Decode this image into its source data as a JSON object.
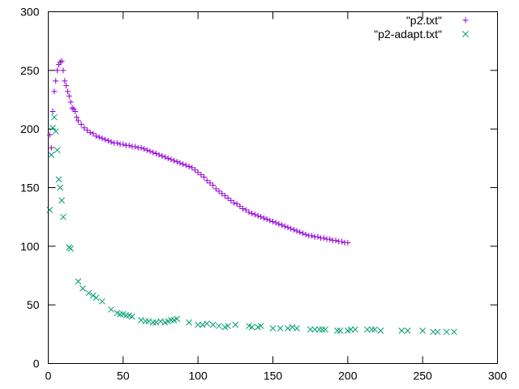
{
  "chart_data": {
    "type": "scatter",
    "title": "",
    "xlabel": "",
    "ylabel": "",
    "xlim": [
      0,
      300
    ],
    "ylim": [
      0,
      300
    ],
    "xticks": [
      0,
      50,
      100,
      150,
      200,
      250,
      300
    ],
    "yticks": [
      0,
      50,
      100,
      150,
      200,
      250,
      300
    ],
    "grid": false,
    "legend_position": "top-right",
    "series": [
      {
        "name": "\"p2.txt\"",
        "marker": "plus",
        "color": "#9400d3",
        "points": [
          [
            1,
            195
          ],
          [
            2,
            184
          ],
          [
            3,
            215
          ],
          [
            4,
            232
          ],
          [
            5,
            241
          ],
          [
            6,
            250
          ],
          [
            7,
            255
          ],
          [
            8,
            257
          ],
          [
            9,
            258
          ],
          [
            10,
            250
          ],
          [
            11,
            241
          ],
          [
            12,
            237
          ],
          [
            13,
            232
          ],
          [
            14,
            228
          ],
          [
            15,
            223
          ],
          [
            16,
            218
          ],
          [
            17,
            217
          ],
          [
            18,
            215
          ],
          [
            19,
            210
          ],
          [
            20,
            207
          ],
          [
            22,
            204
          ],
          [
            24,
            201
          ],
          [
            26,
            199
          ],
          [
            28,
            197
          ],
          [
            30,
            196
          ],
          [
            32,
            194
          ],
          [
            34,
            193
          ],
          [
            36,
            192
          ],
          [
            38,
            191
          ],
          [
            40,
            190
          ],
          [
            42,
            189
          ],
          [
            44,
            188
          ],
          [
            46,
            188
          ],
          [
            48,
            187
          ],
          [
            50,
            187
          ],
          [
            52,
            186
          ],
          [
            54,
            186
          ],
          [
            56,
            185
          ],
          [
            58,
            185
          ],
          [
            60,
            184
          ],
          [
            62,
            184
          ],
          [
            64,
            183
          ],
          [
            66,
            182
          ],
          [
            68,
            181
          ],
          [
            70,
            180
          ],
          [
            72,
            179
          ],
          [
            74,
            178
          ],
          [
            76,
            177
          ],
          [
            78,
            176
          ],
          [
            80,
            175
          ],
          [
            82,
            174
          ],
          [
            84,
            173
          ],
          [
            86,
            172
          ],
          [
            88,
            171
          ],
          [
            90,
            170
          ],
          [
            92,
            169
          ],
          [
            94,
            168
          ],
          [
            96,
            167
          ],
          [
            98,
            165
          ],
          [
            100,
            163
          ],
          [
            102,
            161
          ],
          [
            104,
            159
          ],
          [
            106,
            156
          ],
          [
            108,
            154
          ],
          [
            110,
            152
          ],
          [
            112,
            149
          ],
          [
            114,
            147
          ],
          [
            116,
            145
          ],
          [
            118,
            143
          ],
          [
            120,
            141
          ],
          [
            122,
            139
          ],
          [
            124,
            137
          ],
          [
            126,
            136
          ],
          [
            128,
            134
          ],
          [
            130,
            132
          ],
          [
            132,
            131
          ],
          [
            134,
            129
          ],
          [
            136,
            128
          ],
          [
            138,
            127
          ],
          [
            140,
            126
          ],
          [
            142,
            125
          ],
          [
            144,
            124
          ],
          [
            146,
            123
          ],
          [
            148,
            122
          ],
          [
            150,
            121
          ],
          [
            152,
            120
          ],
          [
            154,
            119
          ],
          [
            156,
            118
          ],
          [
            158,
            117
          ],
          [
            160,
            116
          ],
          [
            162,
            115
          ],
          [
            164,
            114
          ],
          [
            166,
            113
          ],
          [
            168,
            112
          ],
          [
            170,
            111
          ],
          [
            172,
            110
          ],
          [
            174,
            109
          ],
          [
            176,
            109
          ],
          [
            178,
            108
          ],
          [
            180,
            108
          ],
          [
            182,
            107
          ],
          [
            184,
            107
          ],
          [
            186,
            106
          ],
          [
            188,
            106
          ],
          [
            190,
            105
          ],
          [
            192,
            105
          ],
          [
            194,
            104
          ],
          [
            196,
            104
          ],
          [
            198,
            103
          ],
          [
            200,
            103
          ]
        ]
      },
      {
        "name": "\"p2-adapt.txt\"",
        "marker": "cross",
        "color": "#009e73",
        "points": [
          [
            1,
            131
          ],
          [
            2,
            178
          ],
          [
            3,
            201
          ],
          [
            4,
            210
          ],
          [
            5,
            198
          ],
          [
            6,
            182
          ],
          [
            7,
            157
          ],
          [
            8,
            150
          ],
          [
            9,
            139
          ],
          [
            10,
            125
          ],
          [
            14,
            99
          ],
          [
            15,
            98
          ],
          [
            20,
            70
          ],
          [
            23,
            64
          ],
          [
            27,
            60
          ],
          [
            30,
            58
          ],
          [
            32,
            56
          ],
          [
            36,
            53
          ],
          [
            42,
            46
          ],
          [
            46,
            43
          ],
          [
            48,
            42
          ],
          [
            50,
            42
          ],
          [
            52,
            41
          ],
          [
            54,
            41
          ],
          [
            56,
            40
          ],
          [
            62,
            37
          ],
          [
            65,
            36
          ],
          [
            67,
            36
          ],
          [
            70,
            35
          ],
          [
            72,
            35
          ],
          [
            75,
            36
          ],
          [
            78,
            35
          ],
          [
            80,
            36
          ],
          [
            82,
            37
          ],
          [
            84,
            37
          ],
          [
            86,
            38
          ],
          [
            94,
            35
          ],
          [
            100,
            33
          ],
          [
            103,
            33
          ],
          [
            106,
            34
          ],
          [
            110,
            33
          ],
          [
            114,
            32
          ],
          [
            118,
            31
          ],
          [
            120,
            32
          ],
          [
            125,
            33
          ],
          [
            134,
            32
          ],
          [
            136,
            31
          ],
          [
            140,
            31
          ],
          [
            142,
            32
          ],
          [
            150,
            30
          ],
          [
            155,
            30
          ],
          [
            160,
            30
          ],
          [
            163,
            31
          ],
          [
            166,
            30
          ],
          [
            175,
            29
          ],
          [
            178,
            29
          ],
          [
            181,
            29
          ],
          [
            183,
            29
          ],
          [
            185,
            29
          ],
          [
            193,
            28
          ],
          [
            195,
            28
          ],
          [
            200,
            28
          ],
          [
            202,
            29
          ],
          [
            205,
            29
          ],
          [
            213,
            29
          ],
          [
            216,
            29
          ],
          [
            218,
            29
          ],
          [
            222,
            28
          ],
          [
            236,
            28
          ],
          [
            240,
            28
          ],
          [
            250,
            28
          ],
          [
            257,
            27
          ],
          [
            260,
            27
          ],
          [
            266,
            27
          ],
          [
            271,
            27
          ]
        ]
      }
    ]
  }
}
